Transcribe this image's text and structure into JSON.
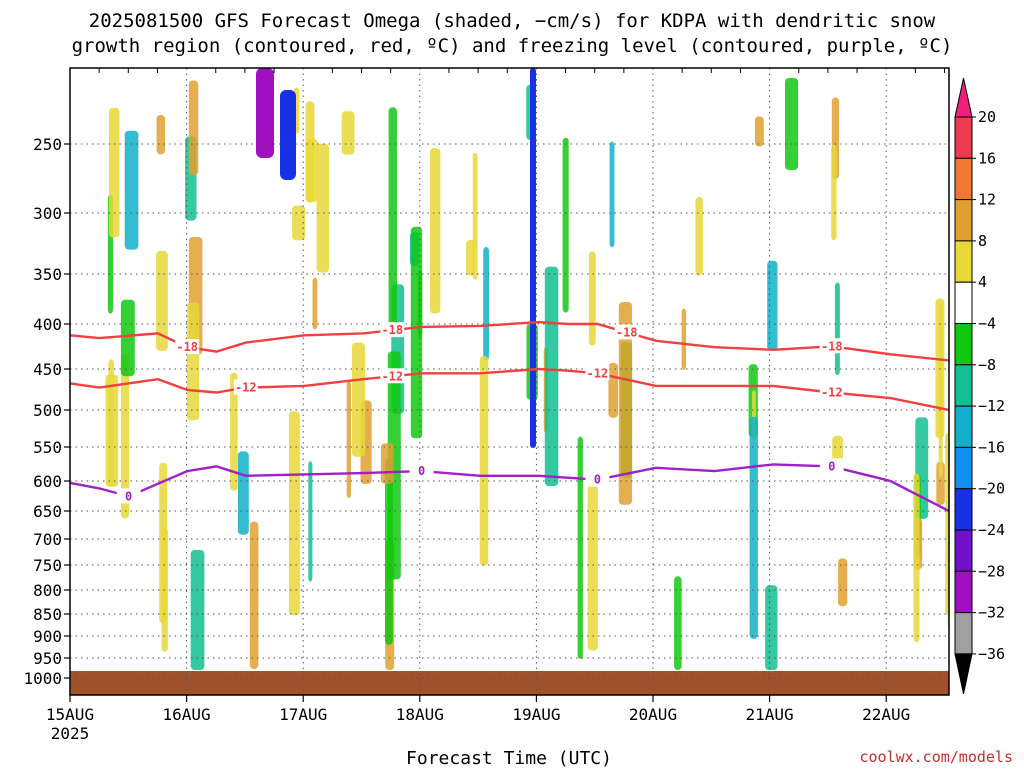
{
  "chart_data": {
    "type": "heatmap",
    "title_lines": [
      "2025081500 GFS Forecast Omega (shaded, −cm/s) for KDPA with dendritic snow",
      "growth region (contoured, red, ºC) and freezing level (contoured, purple, ºC)"
    ],
    "xlabel": "Forecast Time (UTC)",
    "x_ticks": [
      "15AUG",
      "16AUG",
      "17AUG",
      "18AUG",
      "19AUG",
      "20AUG",
      "21AUG",
      "22AUG"
    ],
    "x_tick_sub": "2025",
    "x_range": [
      "2025-08-15T00",
      "2025-08-22T12"
    ],
    "y_ticks": [
      "250",
      "300",
      "350",
      "400",
      "450",
      "500",
      "550",
      "600",
      "650",
      "700",
      "750",
      "800",
      "850",
      "900",
      "950",
      "1000"
    ],
    "y_range": [
      1000,
      200
    ],
    "y_scale": "log",
    "grid": true,
    "colorbar": {
      "labels": [
        "20",
        "16",
        "12",
        "8",
        "4",
        "−4",
        "−8",
        "−12",
        "−16",
        "−20",
        "−24",
        "−28",
        "−32",
        "−36"
      ],
      "colors": [
        "#f03a50",
        "#f07832",
        "#e0a030",
        "#e8d838",
        "#ffffff",
        "#10c810",
        "#10c090",
        "#10b0c8",
        "#1090f0",
        "#1830e8",
        "#7010c8",
        "#a010c0",
        "#a0a0a0"
      ],
      "top_arrow_color": "#f0207a",
      "bottom_arrow_color": "#000000"
    },
    "contours": {
      "minus18": {
        "label": "-18",
        "color": "#f04040",
        "x": [
          "2025-08-15T00",
          "2025-08-15T06",
          "2025-08-15T18",
          "2025-08-16T00",
          "2025-08-16T06",
          "2025-08-16T12",
          "2025-08-17T00",
          "2025-08-17T12",
          "2025-08-18T00",
          "2025-08-18T12",
          "2025-08-19T00",
          "2025-08-19T06",
          "2025-08-19T12",
          "2025-08-20T00",
          "2025-08-20T12",
          "2025-08-21T00",
          "2025-08-21T12",
          "2025-08-22T00",
          "2025-08-22T12"
        ],
        "p": [
          412,
          415,
          410,
          425,
          430,
          420,
          412,
          410,
          403,
          402,
          398,
          400,
          400,
          418,
          425,
          428,
          424,
          433,
          440
        ],
        "label_positions": [
          "2025-08-16T00",
          "2025-08-17T18",
          "2025-08-19T18",
          "2025-08-21T12"
        ]
      },
      "minus12": {
        "label": "-12",
        "color": "#f04040",
        "x": [
          "2025-08-15T00",
          "2025-08-15T06",
          "2025-08-15T18",
          "2025-08-16T00",
          "2025-08-16T06",
          "2025-08-16T12",
          "2025-08-17T00",
          "2025-08-17T12",
          "2025-08-18T00",
          "2025-08-18T12",
          "2025-08-19T00",
          "2025-08-19T06",
          "2025-08-19T12",
          "2025-08-20T00",
          "2025-08-20T12",
          "2025-08-21T00",
          "2025-08-21T12",
          "2025-08-22T00",
          "2025-08-22T12"
        ],
        "p": [
          467,
          472,
          462,
          475,
          478,
          472,
          470,
          462,
          455,
          455,
          450,
          452,
          455,
          470,
          470,
          470,
          478,
          485,
          500
        ],
        "label_positions": [
          "2025-08-16T12",
          "2025-08-17T18",
          "2025-08-19T12",
          "2025-08-21T12"
        ]
      },
      "zero": {
        "label": "0",
        "color": "#a020c8",
        "x": [
          "2025-08-15T00",
          "2025-08-15T06",
          "2025-08-15T12",
          "2025-08-16T00",
          "2025-08-16T06",
          "2025-08-16T12",
          "2025-08-17T00",
          "2025-08-17T12",
          "2025-08-18T00",
          "2025-08-18T12",
          "2025-08-19T00",
          "2025-08-19T12",
          "2025-08-20T00",
          "2025-08-20T12",
          "2025-08-21T00",
          "2025-08-21T12",
          "2025-08-22T00",
          "2025-08-22T12"
        ],
        "p": [
          603,
          612,
          625,
          585,
          578,
          592,
          590,
          588,
          585,
          592,
          592,
          598,
          580,
          585,
          575,
          578,
          600,
          650
        ],
        "label_positions": [
          "2025-08-15T12",
          "2025-08-18T00",
          "2025-08-19T12",
          "2025-08-21T12"
        ]
      }
    },
    "credit": "coolwx.com/models"
  }
}
